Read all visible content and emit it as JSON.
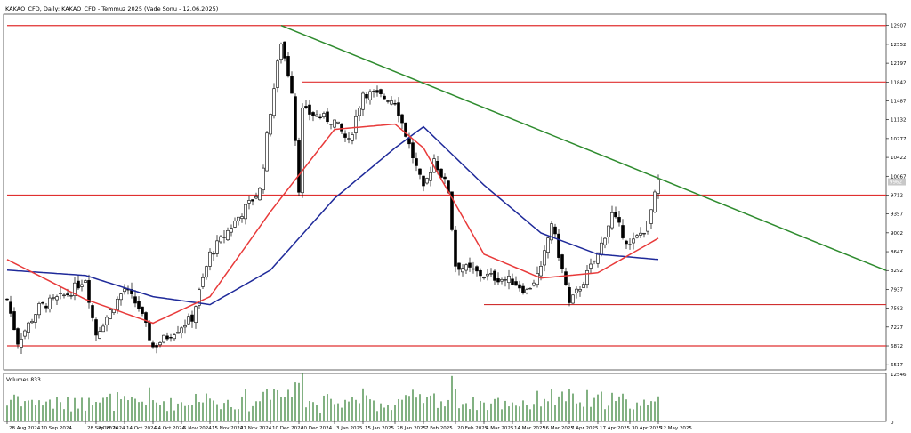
{
  "header": {
    "title": "KAKAO_CFD, Daily:  KAKAO_CFD - Temmuz 2025 (Vade Sonu - 12.06.2025)"
  },
  "volume_label": "Volumes 833",
  "colors": {
    "background": "#ffffff",
    "candle": "#000000",
    "ema_fast": "#e83a3a",
    "ema_slow": "#1f2a9a",
    "trendline": "#2e8b2e",
    "level": "#e03030",
    "axis": "#000000"
  },
  "chart_data": {
    "type": "candlestick",
    "price_axis": {
      "ylim": [
        6420,
        13120
      ],
      "ticks": [
        6517,
        6872,
        7227,
        7582,
        7937,
        8292,
        8647,
        9002,
        9357,
        9712,
        10067,
        10422,
        10777,
        11132,
        11487,
        11842,
        12197,
        12552,
        12907
      ]
    },
    "current_price_label": "9962",
    "volume_axis": {
      "ylim": [
        0,
        12546
      ],
      "ticks": [
        0,
        12546
      ]
    },
    "x_labels": [
      "28 Aug 2024",
      "10 Sep 2024",
      "28 Sep 2024",
      "2 Oct 2024",
      "14 Oct 2024",
      "24 Oct 2024",
      "5 Nov 2024",
      "15 Nov 2024",
      "27 Nov 2024",
      "10 Dec 2024",
      "20 Dec 2024",
      "3 Jan 2025",
      "15 Jan 2025",
      "28 Jan 2025",
      "7 Feb 2025",
      "20 Feb 2025",
      "4 Mar 2025",
      "14 Mar 2025",
      "26 Mar 2025",
      "7 Apr 2025",
      "17 Apr 2025",
      "30 Apr 2025",
      "12 May 2025"
    ],
    "ohlc_anchors": [
      {
        "date": "28 Aug 2024",
        "close": 7750
      },
      {
        "date": "2 Sep 2024",
        "close": 6950
      },
      {
        "date": "10 Sep 2024",
        "close": 7600
      },
      {
        "date": "20 Sep 2024",
        "close": 7850
      },
      {
        "date": "28 Sep 2024",
        "close": 8150
      },
      {
        "date": "1 Oct 2024",
        "close": 7400
      },
      {
        "date": "2 Oct 2024",
        "close": 7100
      },
      {
        "date": "14 Oct 2024",
        "close": 7950
      },
      {
        "date": "18 Oct 2024",
        "close": 7600
      },
      {
        "date": "24 Oct 2024",
        "close": 6850
      },
      {
        "date": "5 Nov 2024",
        "close": 7250
      },
      {
        "date": "10 Nov 2024",
        "close": 7400
      },
      {
        "date": "15 Nov 2024",
        "close": 8600
      },
      {
        "date": "27 Nov 2024",
        "close": 9300
      },
      {
        "date": "5 Dec 2024",
        "close": 9800
      },
      {
        "date": "10 Dec 2024",
        "close": 11300
      },
      {
        "date": "14 Dec 2024",
        "close": 12600
      },
      {
        "date": "18 Dec 2024",
        "close": 11700
      },
      {
        "date": "20 Dec 2024",
        "close": 9850
      },
      {
        "date": "23 Dec 2024",
        "close": 11300
      },
      {
        "date": "3 Jan 2025",
        "close": 11100
      },
      {
        "date": "9 Jan 2025",
        "close": 10700
      },
      {
        "date": "15 Jan 2025",
        "close": 11650
      },
      {
        "date": "28 Jan 2025",
        "close": 11500
      },
      {
        "date": "7 Feb 2025",
        "close": 9800
      },
      {
        "date": "12 Feb 2025",
        "close": 10400
      },
      {
        "date": "18 Feb 2025",
        "close": 9800
      },
      {
        "date": "20 Feb 2025",
        "close": 8400
      },
      {
        "date": "4 Mar 2025",
        "close": 8200
      },
      {
        "date": "14 Mar 2025",
        "close": 8100
      },
      {
        "date": "20 Mar 2025",
        "close": 7900
      },
      {
        "date": "26 Mar 2025",
        "close": 8300
      },
      {
        "date": "31 Mar 2025",
        "close": 9200
      },
      {
        "date": "4 Apr 2025",
        "close": 8000
      },
      {
        "date": "7 Apr 2025",
        "close": 7650
      },
      {
        "date": "11 Apr 2025",
        "close": 8100
      },
      {
        "date": "17 Apr 2025",
        "close": 8600
      },
      {
        "date": "23 Apr 2025",
        "close": 9350
      },
      {
        "date": "30 Apr 2025",
        "close": 8750
      },
      {
        "date": "7 May 2025",
        "close": 9150
      },
      {
        "date": "12 May 2025",
        "close": 9962
      }
    ],
    "ema_fast_anchors": [
      {
        "date": "28 Aug 2024",
        "value": 8500
      },
      {
        "date": "28 Sep 2024",
        "value": 7750
      },
      {
        "date": "24 Oct 2024",
        "value": 7300
      },
      {
        "date": "15 Nov 2024",
        "value": 7800
      },
      {
        "date": "10 Dec 2024",
        "value": 9400
      },
      {
        "date": "3 Jan 2025",
        "value": 10950
      },
      {
        "date": "28 Jan 2025",
        "value": 11050
      },
      {
        "date": "7 Feb 2025",
        "value": 10600
      },
      {
        "date": "4 Mar 2025",
        "value": 8600
      },
      {
        "date": "26 Mar 2025",
        "value": 8150
      },
      {
        "date": "17 Apr 2025",
        "value": 8250
      },
      {
        "date": "12 May 2025",
        "value": 8900
      }
    ],
    "ema_slow_anchors": [
      {
        "date": "28 Aug 2024",
        "value": 8300
      },
      {
        "date": "28 Sep 2024",
        "value": 8200
      },
      {
        "date": "24 Oct 2024",
        "value": 7800
      },
      {
        "date": "15 Nov 2024",
        "value": 7650
      },
      {
        "date": "10 Dec 2024",
        "value": 8300
      },
      {
        "date": "3 Jan 2025",
        "value": 9650
      },
      {
        "date": "28 Jan 2025",
        "value": 10600
      },
      {
        "date": "7 Feb 2025",
        "value": 11000
      },
      {
        "date": "4 Mar 2025",
        "value": 9900
      },
      {
        "date": "26 Mar 2025",
        "value": 9000
      },
      {
        "date": "17 Apr 2025",
        "value": 8600
      },
      {
        "date": "12 May 2025",
        "value": 8500
      }
    ],
    "horizontal_levels": [
      {
        "from": "28 Aug 2024",
        "price": 12907
      },
      {
        "from": "23 Dec 2024",
        "price": 11842
      },
      {
        "from": "28 Aug 2024",
        "price": 9712
      },
      {
        "from": "4 Mar 2025",
        "price": 7650
      },
      {
        "from": "28 Aug 2024",
        "price": 6872
      }
    ],
    "trendline": {
      "from": {
        "date": "14 Dec 2024",
        "price": 12907
      },
      "to_price": 8292
    }
  }
}
